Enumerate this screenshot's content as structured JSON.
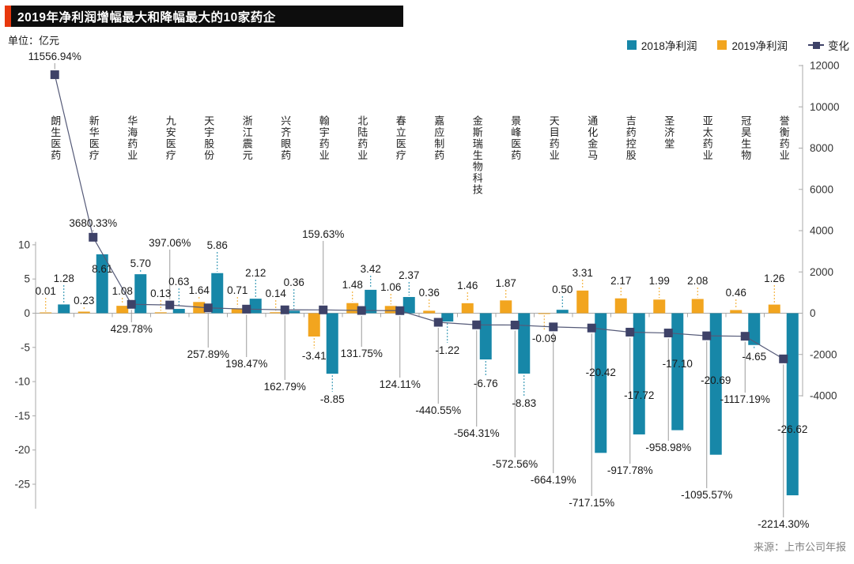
{
  "title": "2019年净利润增幅最大和降幅最大的10家药企",
  "unit_label": "单位：亿元",
  "source": "来源：上市公司年报",
  "colors": {
    "teal": "#1787A8",
    "orange": "#F2A51F",
    "navy": "#3E4268",
    "change_line": "#555A78",
    "title_bg": "#0D0D0D",
    "title_accent": "#E8380D",
    "axis_gray": "#A8A8A8",
    "leader_gray": "#9B9B9B",
    "text_dark": "#1A1A1A",
    "source_gray": "#7F7F7F"
  },
  "legend": {
    "position": "top-right",
    "items": [
      {
        "label": "2018净利润",
        "swatch_color": "#1787A8",
        "type": "square"
      },
      {
        "label": "2019净利润",
        "swatch_color": "#F2A51F",
        "type": "square"
      },
      {
        "label": "变化",
        "swatch_color": "#3E4268",
        "type": "line-marker"
      }
    ]
  },
  "chart_data": {
    "type": "bar+line combo (dual axis)",
    "categories": [
      "朗生医药",
      "新华医疗",
      "华海药业",
      "九安医疗",
      "天宇股份",
      "浙江震元",
      "兴齐眼药",
      "翰宇药业",
      "北陆药业",
      "春立医疗",
      "嘉应制药",
      "金斯瑞生物科技",
      "景峰医药",
      "天目药业",
      "通化金马",
      "吉药控股",
      "圣济堂",
      "亚太药业",
      "冠昊生物",
      "誉衡药业"
    ],
    "series": [
      {
        "name": "2018净利润",
        "unit": "亿元",
        "axis": "left",
        "drawn_bar_color": "#F2A51F",
        "drawn_position": "left-bar",
        "values": [
          0.01,
          0.23,
          1.08,
          0.13,
          1.64,
          0.71,
          0.14,
          -3.41,
          1.48,
          1.06,
          0.36,
          1.46,
          1.87,
          -0.09,
          3.31,
          2.17,
          1.99,
          2.08,
          0.46,
          1.26
        ],
        "labels": [
          "0.01",
          "0.23",
          "1.08",
          "0.13",
          "1.64",
          "0.71",
          "0.14",
          "-3.41",
          "1.48",
          "1.06",
          "0.36",
          "1.46",
          "1.87",
          "-0.09",
          "3.31",
          "2.17",
          "1.99",
          "2.08",
          "0.46",
          "1.26"
        ]
      },
      {
        "name": "2019净利润",
        "unit": "亿元",
        "axis": "left",
        "drawn_bar_color": "#1787A8",
        "drawn_position": "right-bar",
        "values": [
          1.28,
          8.61,
          5.7,
          0.63,
          5.86,
          2.12,
          0.36,
          -8.85,
          3.42,
          2.37,
          -1.22,
          -6.76,
          -8.83,
          0.5,
          -20.42,
          -17.72,
          -17.1,
          -20.69,
          -4.65,
          -26.62
        ],
        "labels": [
          "1.28",
          "8.61",
          "5.70",
          "0.63",
          "5.86",
          "2.12",
          "0.36",
          "-8.85",
          "3.42",
          "2.37",
          "-1.22",
          "-6.76",
          "-8.83",
          "0.50",
          "-20.42",
          "-17.72",
          "-17.10",
          "-20.69",
          "-4.65",
          "-26.62"
        ]
      },
      {
        "name": "变化",
        "unit": "%",
        "axis": "right",
        "type": "line",
        "color": "#3E4268",
        "values": [
          11556.94,
          3680.33,
          429.78,
          397.06,
          257.89,
          198.47,
          162.79,
          159.63,
          131.75,
          124.11,
          -440.55,
          -564.31,
          -572.56,
          -664.19,
          -717.15,
          -917.78,
          -958.98,
          -1095.57,
          -1117.19,
          -2214.3
        ],
        "labels": [
          "11556.94%",
          "3680.33%",
          "429.78%",
          "397.06%",
          "257.89%",
          "198.47%",
          "162.79%",
          "159.63%",
          "131.75%",
          "124.11%",
          "-440.55%",
          "-564.31%",
          "-572.56%",
          "-664.19%",
          "-717.15%",
          "-917.78%",
          "-958.98%",
          "-1095.57%",
          "-1117.19%",
          "-2214.30%"
        ]
      }
    ],
    "left_axis": {
      "ticks": [
        10,
        5,
        0,
        -5,
        -10,
        -15,
        -20,
        -25
      ]
    },
    "right_axis": {
      "ticks": [
        12000,
        10000,
        8000,
        6000,
        4000,
        2000,
        0,
        -2000,
        -4000
      ]
    },
    "grid": "off",
    "layout_hints": {
      "pct_label_y": [
        72,
        283,
        417,
        308,
        449,
        461,
        490,
        297,
        448,
        487,
        520,
        549,
        588,
        608,
        637,
        596,
        567,
        627,
        506,
        664
      ],
      "value_label_y_s1": [
        369,
        381,
        369,
        372,
        368,
        368,
        372,
        451,
        361,
        364,
        371,
        362,
        359,
        429,
        346,
        356,
        356,
        356,
        371,
        353
      ],
      "value_label_y_s2": [
        353,
        341,
        334,
        357,
        311,
        346,
        358,
        506,
        341,
        349,
        444,
        486,
        511,
        367,
        472,
        501,
        461,
        482,
        452,
        544
      ]
    }
  }
}
